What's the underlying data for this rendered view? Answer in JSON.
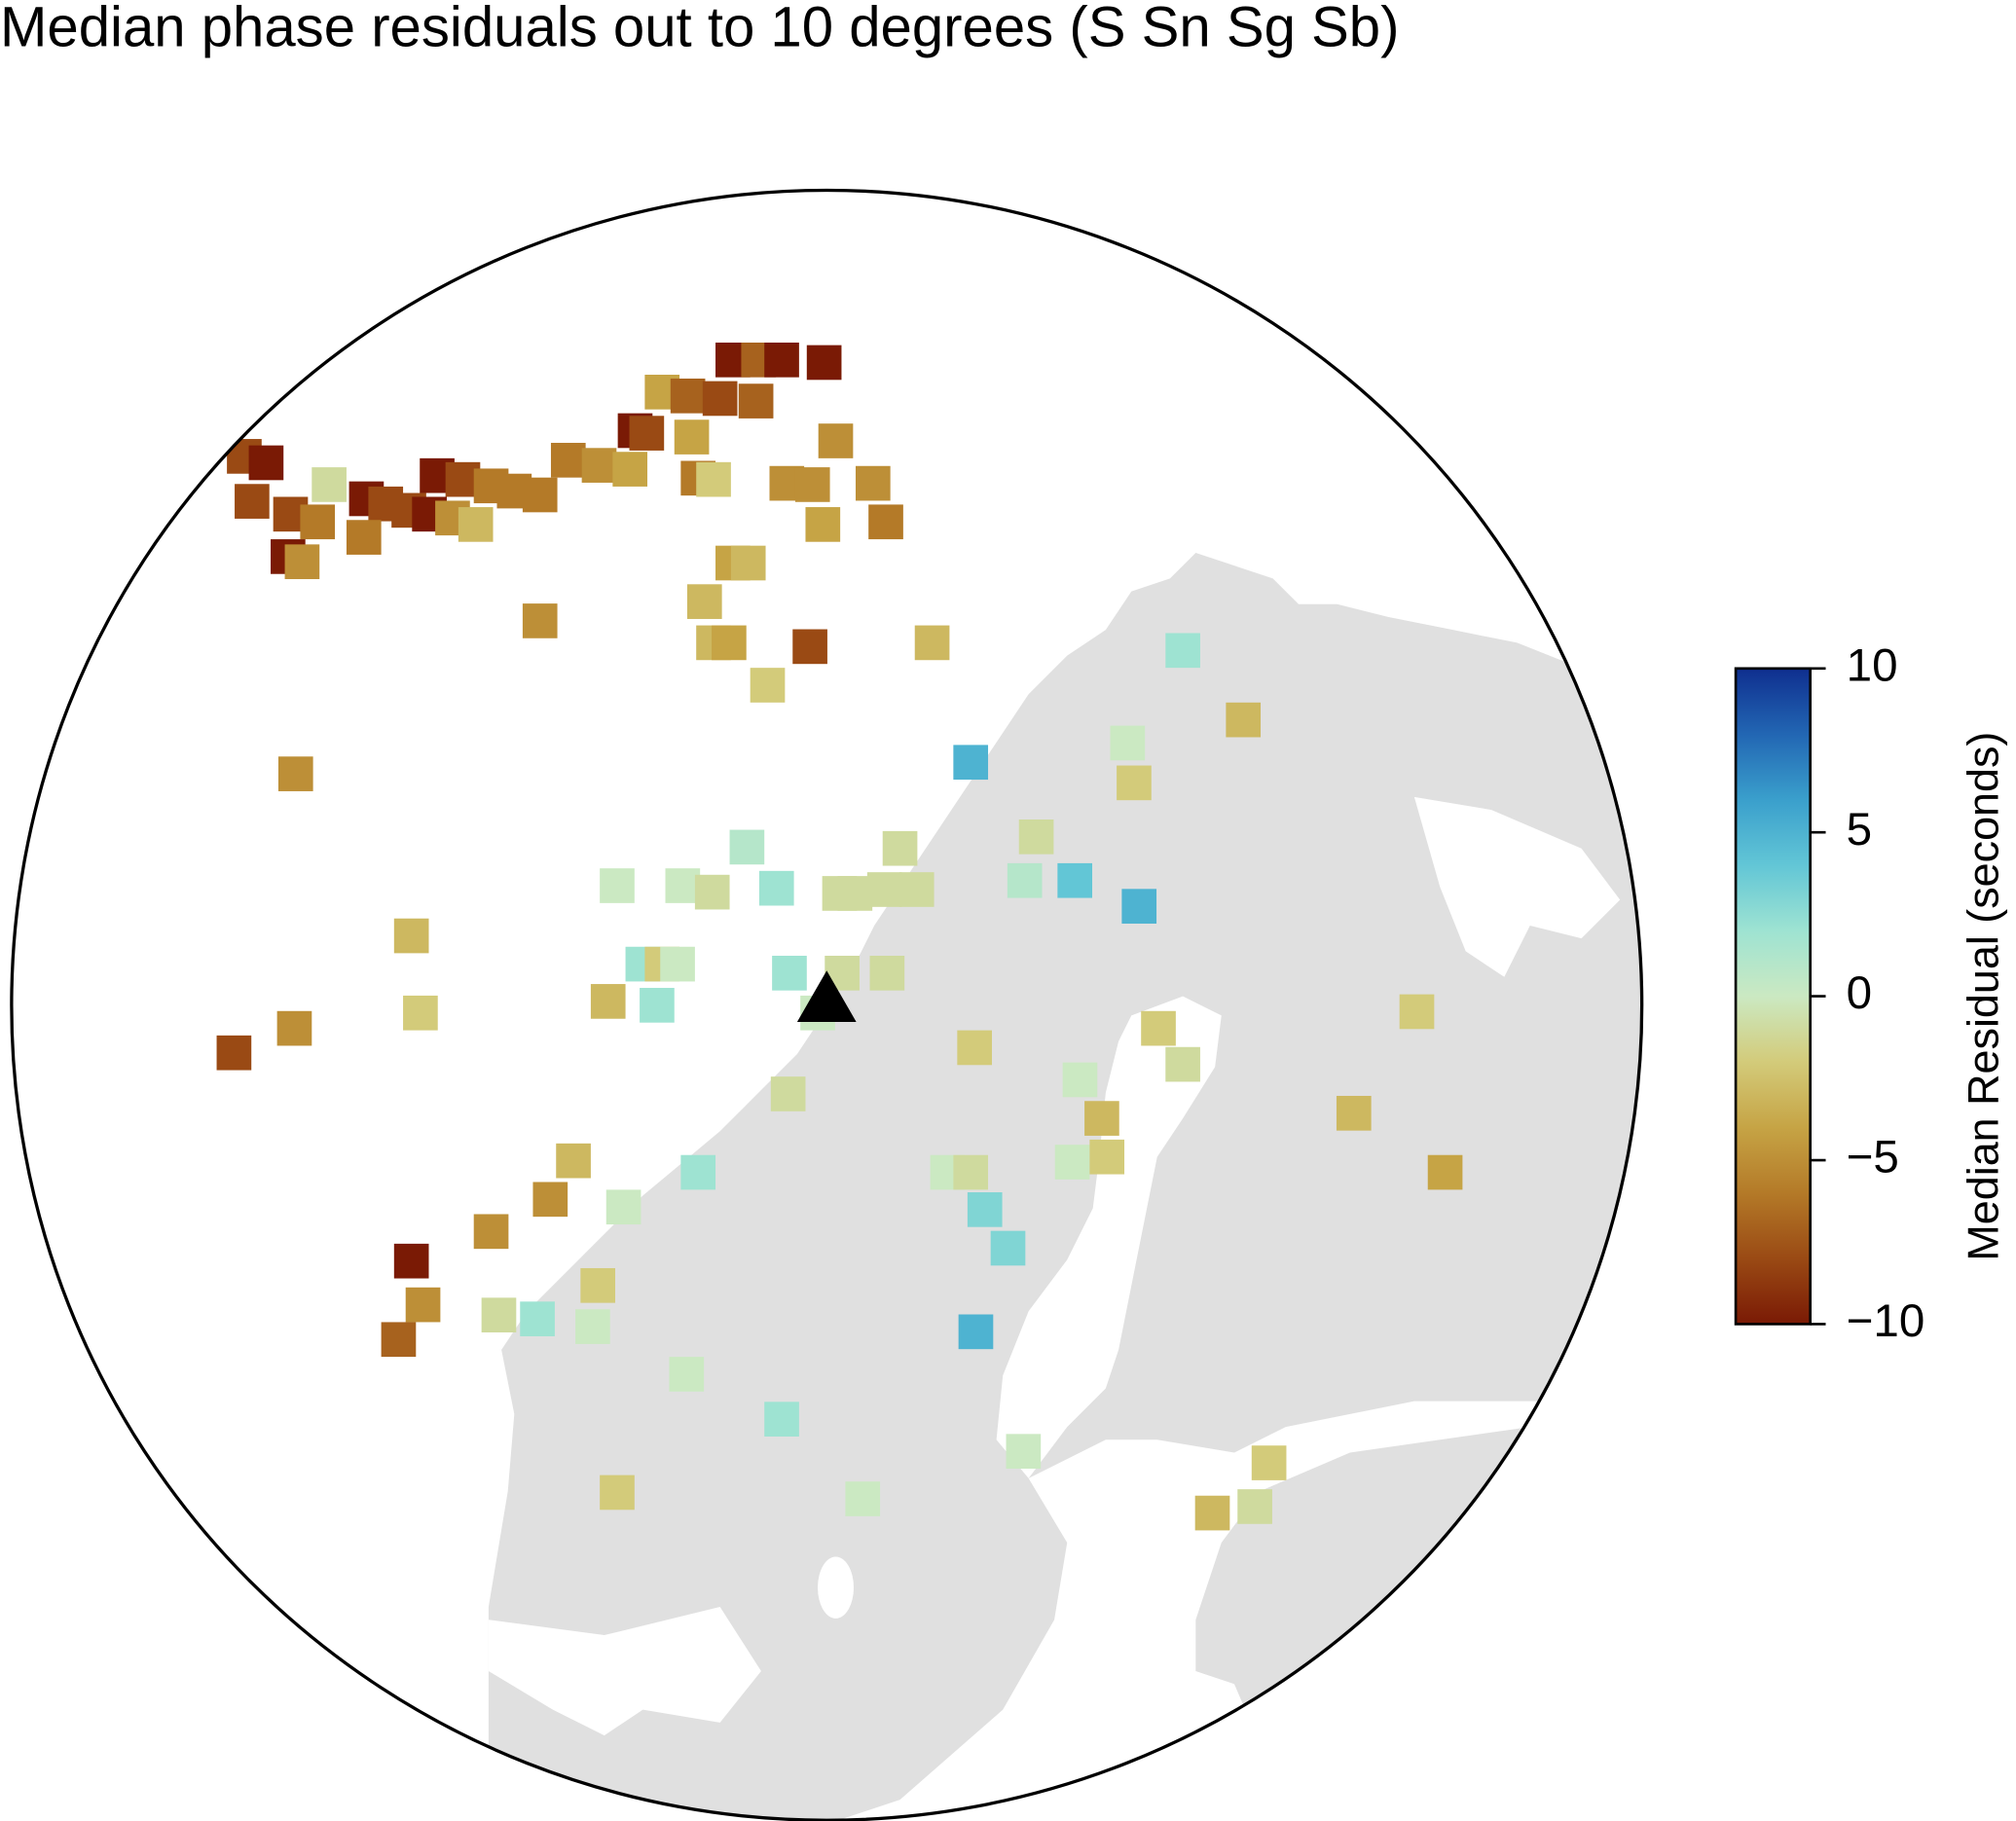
{
  "chart_data": {
    "type": "map",
    "title": "Median phase residuals out to 10 degrees (S Sn Sg Sb)",
    "values": [
      -10,
      -7,
      -10,
      -10,
      -4,
      -7,
      -8,
      -7,
      -10,
      -8,
      -4,
      -5,
      -8,
      -10,
      -1,
      -6,
      -5,
      -4,
      -6,
      -2,
      -10,
      -8,
      -6,
      -6,
      -6,
      -5,
      -5,
      -5,
      -8,
      -8,
      -6,
      -10,
      -8,
      -8,
      -10,
      -5,
      -3,
      -6,
      -4,
      -6,
      -10,
      -5,
      -4,
      -3,
      -3,
      -5,
      -3,
      -4,
      -8,
      -3,
      -2,
      2,
      -3,
      -5,
      5,
      0,
      -2,
      1,
      -1,
      -1,
      0,
      2,
      -1,
      -1,
      1,
      0,
      -1,
      -1,
      -1,
      4,
      5,
      -3,
      2,
      -2,
      0,
      2,
      -1,
      -1,
      -3,
      2,
      -2,
      -5,
      -8,
      0,
      -2,
      -2,
      -2,
      -1,
      0,
      -3,
      -1,
      -3,
      -3,
      2,
      0,
      -1,
      0,
      -2,
      -4,
      -5,
      0,
      3,
      -5,
      3,
      -10,
      -2,
      -5,
      -7,
      -1,
      2,
      0,
      5,
      0,
      2,
      0,
      -2,
      -2,
      0,
      -1,
      -3
    ],
    "colorbar": {
      "label": "Median Residual (seconds)",
      "lim": [
        -10,
        10
      ],
      "ticks": [
        10,
        5,
        0,
        {
          "value": -5,
          "label": "−5"
        },
        {
          "value": -10,
          "label": "−10"
        }
      ],
      "colors": [
        "#7a1a05",
        "#9a4a14",
        "#b47a28",
        "#c6a445",
        "#d3cb7a",
        "#cbe9c2",
        "#9ee3d2",
        "#62c6d6",
        "#3a9fcc",
        "#2266b3",
        "#0f2f8f"
      ]
    }
  }
}
